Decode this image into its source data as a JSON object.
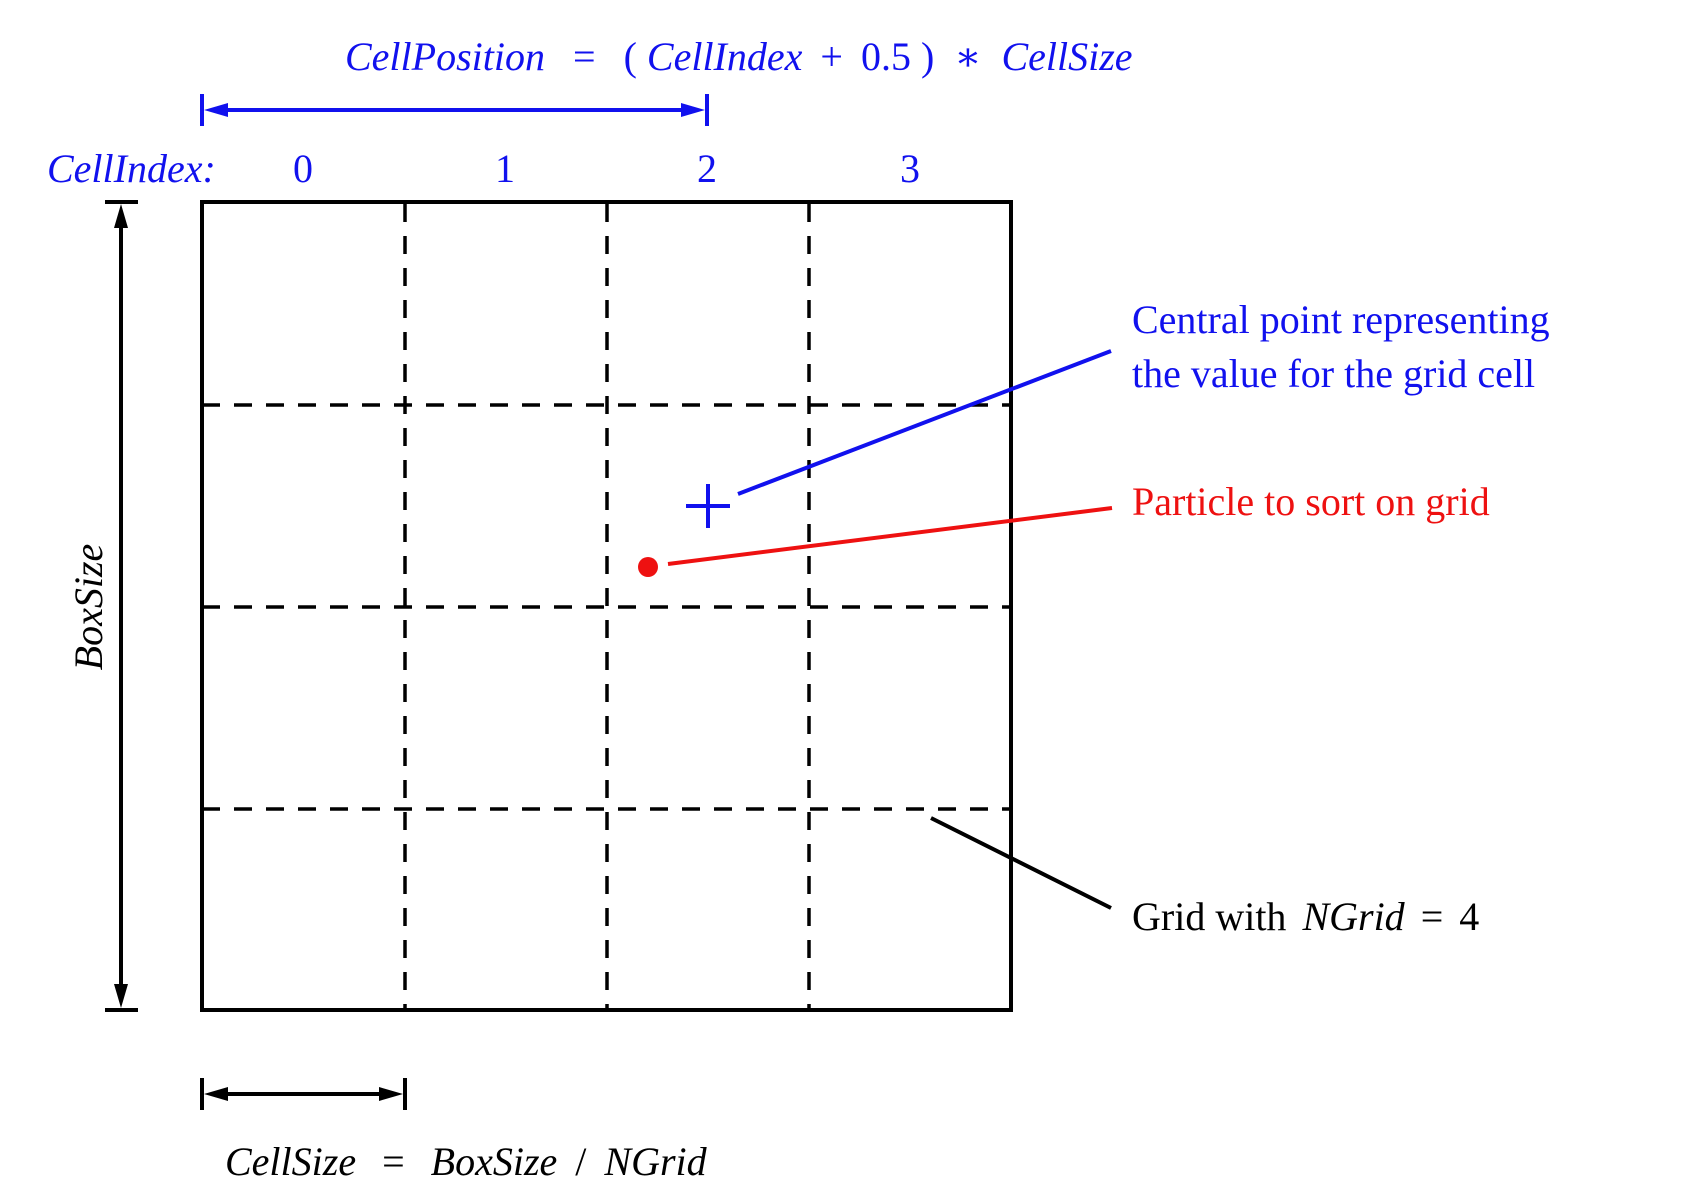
{
  "colors": {
    "blue": "#1111ee",
    "red": "#ee1111",
    "black": "#000000"
  },
  "top_formula": {
    "lhs": "CellPosition",
    "eq": "=",
    "open": "(",
    "term": "CellIndex",
    "plus": "+",
    "half": "0.5",
    "close": ")",
    "times": "∗",
    "rhs": "CellSize"
  },
  "cell_index": {
    "label": "CellIndex:",
    "values": [
      "0",
      "1",
      "2",
      "3"
    ]
  },
  "box_size_label": "BoxSize",
  "central_point_label": {
    "line1": "Central point representing",
    "line2": "the value for the grid cell"
  },
  "particle_label": "Particle to sort on grid",
  "grid_label": {
    "prefix": "Grid with",
    "var": "NGrid",
    "eq": "=",
    "value": "4"
  },
  "bottom_formula": {
    "lhs": "CellSize",
    "eq": "=",
    "num": "BoxSize",
    "slash": "/",
    "den": "NGrid"
  },
  "grid": {
    "ngrid": 4
  }
}
